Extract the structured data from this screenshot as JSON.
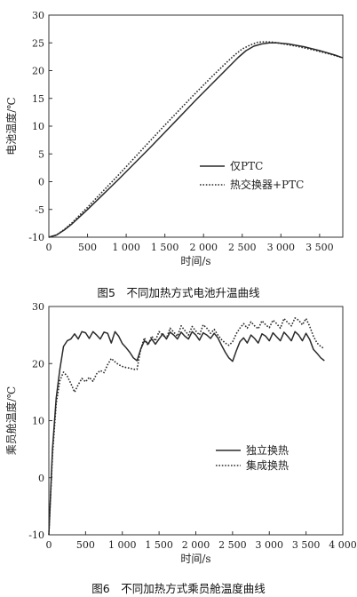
{
  "figure1": {
    "caption": "图5　不同加热方式电池升温曲线",
    "chart_data": {
      "type": "line",
      "title": "",
      "xlabel": "时间/s",
      "ylabel": "电池温度/℃",
      "xlim": [
        0,
        3800
      ],
      "ylim": [
        -10,
        30
      ],
      "xticks": [
        0,
        500,
        1000,
        1500,
        2000,
        2500,
        3000,
        3500
      ],
      "xtick_labels": [
        "0",
        "500",
        "1 000",
        "1 500",
        "2 000",
        "2 500",
        "3 000",
        "3 500"
      ],
      "yticks": [
        -10,
        -5,
        0,
        5,
        10,
        15,
        20,
        25,
        30
      ],
      "ytick_labels": [
        "-10",
        "-5",
        "0",
        "5",
        "10",
        "15",
        "20",
        "25",
        "30"
      ],
      "grid": false,
      "legend_position": "center-right",
      "series": [
        {
          "name": "仅PTC",
          "style": "solid",
          "x": [
            0,
            100,
            200,
            300,
            400,
            500,
            700,
            900,
            1100,
            1300,
            1500,
            1700,
            1900,
            2100,
            2300,
            2450,
            2550,
            2650,
            2750,
            2850,
            2950,
            3100,
            3300,
            3500,
            3700,
            3800
          ],
          "y": [
            -10,
            -9.6,
            -8.7,
            -7.6,
            -6.3,
            -5.0,
            -2.3,
            0.4,
            3.2,
            6.0,
            8.9,
            11.8,
            14.7,
            17.5,
            20.3,
            22.4,
            23.6,
            24.4,
            24.8,
            25.0,
            25.0,
            24.8,
            24.3,
            23.6,
            22.8,
            22.3
          ]
        },
        {
          "name": "热交换器+PTC",
          "style": "dotted",
          "x": [
            0,
            100,
            200,
            300,
            400,
            500,
            700,
            900,
            1100,
            1300,
            1500,
            1700,
            1900,
            2100,
            2300,
            2400,
            2500,
            2600,
            2700,
            2800,
            2900,
            3000,
            3200,
            3400,
            3600,
            3800
          ],
          "y": [
            -10,
            -9.6,
            -8.6,
            -7.4,
            -6.0,
            -4.6,
            -1.7,
            1.2,
            4.2,
            7.2,
            10.2,
            13.1,
            16.0,
            18.8,
            21.5,
            22.8,
            23.9,
            24.6,
            25.1,
            25.2,
            25.1,
            24.9,
            24.4,
            23.8,
            23.1,
            22.3
          ]
        }
      ]
    }
  },
  "figure2": {
    "caption": "图6　不同加热方式乘员舱温度曲线",
    "chart_data": {
      "type": "line",
      "title": "",
      "xlabel": "时间/s",
      "ylabel": "乘员舱温度/℃",
      "xlim": [
        0,
        4000
      ],
      "ylim": [
        -10,
        30
      ],
      "xticks": [
        0,
        500,
        1000,
        1500,
        2000,
        2500,
        3000,
        3500,
        4000
      ],
      "xtick_labels": [
        "0",
        "500",
        "1 000",
        "1 500",
        "2 000",
        "2 500",
        "3 000",
        "3 500",
        "4 000"
      ],
      "yticks": [
        -10,
        0,
        10,
        20,
        30
      ],
      "ytick_labels": [
        "-10",
        "0",
        "10",
        "20",
        "30"
      ],
      "grid": false,
      "legend_position": "lower-right",
      "series": [
        {
          "name": "独立换热",
          "style": "solid",
          "x": [
            0,
            50,
            100,
            150,
            200,
            250,
            300,
            350,
            400,
            450,
            500,
            550,
            600,
            650,
            700,
            750,
            800,
            850,
            900,
            950,
            1000,
            1050,
            1100,
            1150,
            1200,
            1250,
            1300,
            1350,
            1400,
            1450,
            1500,
            1550,
            1600,
            1650,
            1700,
            1750,
            1800,
            1850,
            1900,
            1950,
            2000,
            2050,
            2100,
            2150,
            2200,
            2250,
            2300,
            2350,
            2400,
            2450,
            2500,
            2550,
            2600,
            2650,
            2700,
            2750,
            2800,
            2850,
            2900,
            2950,
            3000,
            3050,
            3100,
            3150,
            3200,
            3250,
            3300,
            3350,
            3400,
            3450,
            3500,
            3550,
            3600,
            3650,
            3700,
            3750
          ],
          "y": [
            -10,
            5,
            14,
            19,
            23,
            24,
            24.3,
            25.2,
            24.3,
            25.6,
            25.4,
            24.4,
            25.6,
            25.0,
            24.3,
            25.5,
            25.3,
            23.6,
            25.6,
            24.8,
            23.5,
            22.8,
            22.0,
            21.0,
            20.5,
            22.5,
            24.0,
            23.5,
            24.3,
            23.4,
            24.3,
            25.2,
            24.3,
            25.5,
            25.0,
            24.3,
            25.5,
            24.8,
            24.3,
            25.6,
            25.0,
            24.1,
            25.4,
            25.0,
            24.4,
            25.3,
            24.5,
            23.2,
            22.0,
            21.0,
            20.4,
            22.2,
            23.8,
            24.5,
            23.6,
            25.0,
            24.4,
            23.6,
            25.2,
            24.8,
            24.0,
            25.4,
            24.7,
            24.0,
            25.5,
            24.8,
            24.0,
            25.6,
            25.0,
            24.0,
            25.3,
            24.2,
            22.5,
            21.8,
            21.0,
            20.5
          ]
        },
        {
          "name": "集成换热",
          "style": "dotted",
          "x": [
            0,
            50,
            100,
            150,
            200,
            250,
            300,
            350,
            400,
            450,
            500,
            550,
            600,
            650,
            700,
            750,
            800,
            850,
            900,
            950,
            1000,
            1050,
            1100,
            1150,
            1200,
            1250,
            1300,
            1350,
            1400,
            1450,
            1500,
            1550,
            1600,
            1650,
            1700,
            1750,
            1800,
            1850,
            1900,
            1950,
            2000,
            2050,
            2100,
            2150,
            2200,
            2250,
            2300,
            2350,
            2400,
            2450,
            2500,
            2550,
            2600,
            2650,
            2700,
            2750,
            2800,
            2850,
            2900,
            2950,
            3000,
            3050,
            3100,
            3150,
            3200,
            3250,
            3300,
            3350,
            3400,
            3450,
            3500,
            3550,
            3600,
            3650,
            3700,
            3750
          ],
          "y": [
            -10,
            4,
            13,
            17,
            18.5,
            17.8,
            16.5,
            15,
            16.3,
            17.4,
            16.8,
            17.6,
            16.9,
            18.2,
            18.8,
            18.4,
            19.8,
            20.9,
            20.3,
            19.8,
            19.5,
            19.3,
            19.2,
            19.0,
            19.0,
            22.5,
            24.5,
            23.2,
            24.8,
            24.0,
            25.6,
            25.0,
            24.4,
            26.2,
            25.5,
            24.8,
            26.6,
            25.8,
            25.0,
            26.5,
            25.7,
            25.0,
            26.8,
            26.2,
            25.3,
            26.0,
            25.0,
            24.2,
            23.6,
            23.2,
            23.8,
            25.2,
            26.2,
            27.0,
            26.2,
            27.3,
            26.6,
            26.1,
            27.5,
            26.8,
            26.3,
            27.6,
            27.0,
            26.2,
            27.9,
            27.2,
            26.6,
            28.0,
            27.6,
            26.8,
            27.9,
            26.5,
            24.8,
            23.6,
            23.0,
            22.6
          ]
        }
      ]
    }
  }
}
